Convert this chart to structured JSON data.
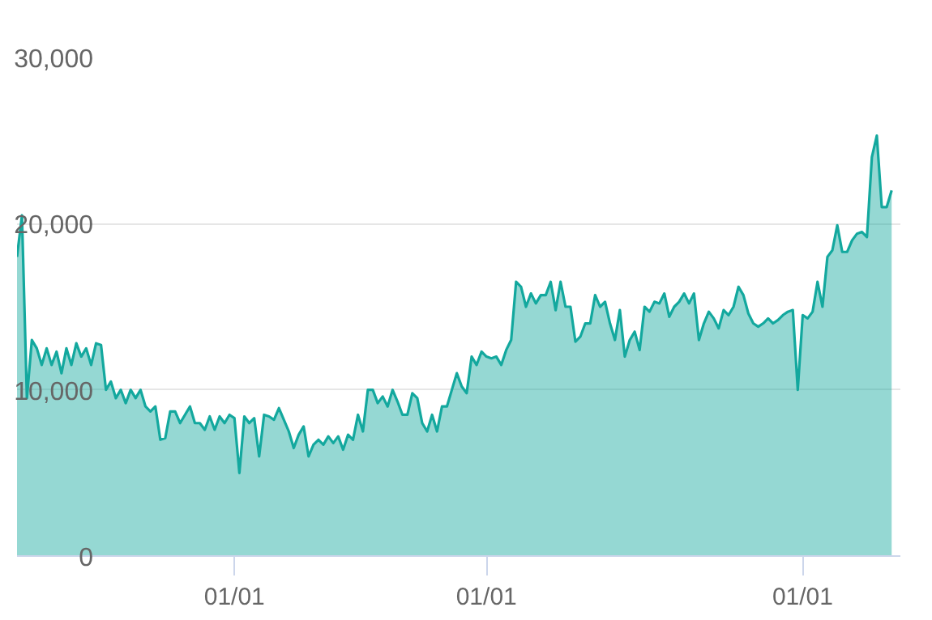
{
  "chart_data": {
    "type": "area",
    "color": "#13a89e",
    "categories": [
      null,
      null,
      null,
      null,
      null,
      null,
      null,
      null,
      null,
      null,
      null,
      null,
      null,
      null,
      null,
      null,
      null,
      null,
      null,
      null,
      null,
      null,
      null,
      null,
      null,
      null,
      null,
      null,
      null,
      null,
      null,
      null,
      null,
      null,
      null,
      null,
      null,
      null,
      null,
      null,
      null,
      null,
      null,
      null,
      "01/01",
      null,
      null,
      null,
      null,
      null,
      null,
      null,
      null,
      null,
      null,
      null,
      null,
      null,
      null,
      null,
      null,
      null,
      null,
      null,
      null,
      null,
      null,
      null,
      null,
      null,
      null,
      null,
      null,
      null,
      null,
      null,
      null,
      null,
      null,
      null,
      null,
      null,
      null,
      null,
      null,
      null,
      null,
      null,
      null,
      null,
      null,
      null,
      null,
      null,
      null,
      "01/01",
      null,
      null,
      null,
      null,
      null,
      null,
      null,
      null,
      null,
      null,
      null,
      null,
      null,
      null,
      null,
      null,
      null,
      null,
      null,
      null,
      null,
      null,
      null,
      null,
      null,
      null,
      null,
      null,
      null,
      null,
      null,
      null,
      null,
      null,
      null,
      null,
      null,
      null,
      null,
      null,
      null,
      null,
      null,
      null,
      null,
      null,
      null,
      null,
      null,
      null,
      null,
      null,
      null,
      null,
      null,
      null,
      null,
      null,
      null,
      null,
      null,
      null,
      null,
      "01/01",
      null,
      null,
      null,
      null,
      null,
      null,
      null,
      null,
      null,
      null,
      null,
      null,
      null,
      null,
      null,
      null,
      null,
      null
    ],
    "values": [
      18000,
      20500,
      9500,
      13000,
      12500,
      11500,
      12500,
      11500,
      12300,
      11000,
      12500,
      11500,
      12800,
      12000,
      12500,
      11500,
      12800,
      12700,
      10000,
      10500,
      9500,
      10000,
      9200,
      10000,
      9500,
      10000,
      9000,
      8700,
      9000,
      7000,
      7100,
      8700,
      8700,
      8000,
      8500,
      9000,
      8000,
      8000,
      7600,
      8400,
      7600,
      8400,
      8000,
      8500,
      8300,
      5000,
      8400,
      8000,
      8300,
      6000,
      8500,
      8400,
      8200,
      8900,
      8200,
      7500,
      6500,
      7300,
      7800,
      6000,
      6700,
      7000,
      6700,
      7200,
      6800,
      7200,
      6400,
      7300,
      7000,
      8500,
      7500,
      10000,
      10000,
      9200,
      9600,
      9000,
      10000,
      9300,
      8500,
      8500,
      9800,
      9500,
      8000,
      7500,
      8500,
      7500,
      9000,
      9000,
      10000,
      11000,
      10200,
      9800,
      12000,
      11500,
      12300,
      12000,
      11900,
      12000,
      11500,
      12400,
      13000,
      16500,
      16200,
      15000,
      15800,
      15200,
      15700,
      15700,
      16500,
      14800,
      16500,
      15000,
      15000,
      12900,
      13200,
      14000,
      14000,
      15700,
      15000,
      15300,
      14000,
      13000,
      14800,
      12000,
      13000,
      13500,
      12400,
      15000,
      14700,
      15300,
      15200,
      15800,
      14400,
      15000,
      15300,
      15800,
      15200,
      15800,
      13000,
      14000,
      14700,
      14300,
      13700,
      14800,
      14500,
      15000,
      16200,
      15700,
      14600,
      14000,
      13800,
      14000,
      14300,
      14000,
      14200,
      14500,
      14700,
      14800,
      10000,
      14500,
      14300,
      14700,
      16500,
      15000,
      18000,
      18400,
      19900,
      18300,
      18300,
      19000,
      19400,
      19500,
      19200,
      24000,
      25300,
      21000,
      21000,
      22000
    ],
    "ylim": [
      0,
      30000
    ],
    "yticks": [
      {
        "value": 0,
        "label": "0"
      },
      {
        "value": 10000,
        "label": "10,000"
      },
      {
        "value": 20000,
        "label": "20,000"
      },
      {
        "value": 30000,
        "label": "30,000"
      }
    ],
    "grid": "y"
  }
}
